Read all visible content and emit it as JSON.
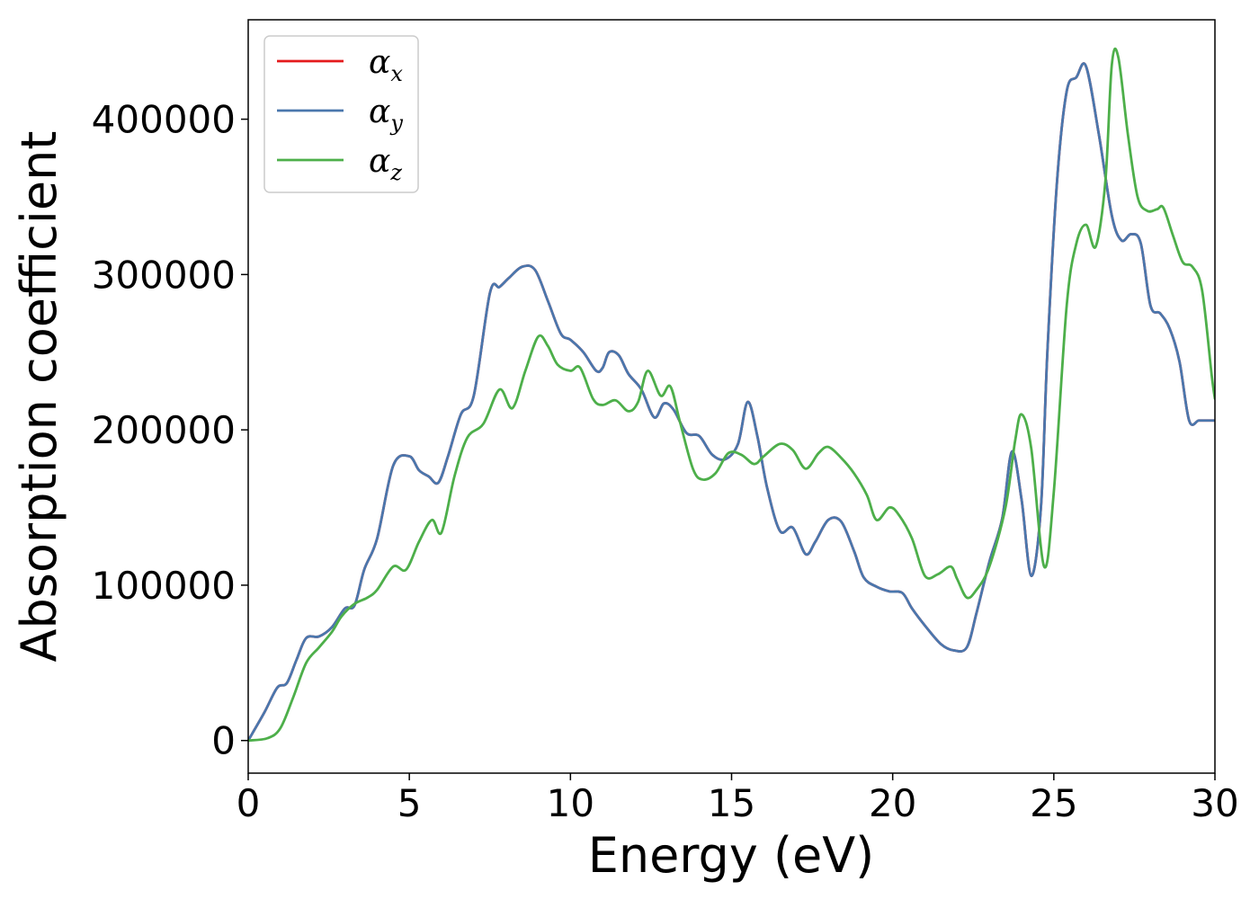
{
  "chart_data": {
    "type": "line",
    "xlabel": "Energy (eV)",
    "ylabel": "Absorption coefficient",
    "xlim": [
      0,
      30
    ],
    "ylim": [
      -21000,
      464000
    ],
    "xticks": [
      "0",
      "5",
      "10",
      "15",
      "20",
      "25",
      "30"
    ],
    "yticks": [
      "0",
      "100000",
      "200000",
      "300000",
      "400000"
    ],
    "grid": false,
    "legend_position": "top-left",
    "series": [
      {
        "name": "α_x",
        "symbol": "α",
        "subscript": "x",
        "color": "#e41a1c",
        "x": [
          0,
          0.5,
          0.9,
          1.2,
          1.5,
          1.8,
          2.2,
          2.6,
          3.0,
          3.3,
          3.6,
          4.0,
          4.5,
          5.0,
          5.3,
          5.6,
          5.9,
          6.2,
          6.6,
          7.0,
          7.5,
          7.8,
          8.1,
          8.5,
          8.9,
          9.3,
          9.7,
          10.0,
          10.4,
          10.8,
          11.0,
          11.2,
          11.5,
          11.8,
          12.2,
          12.6,
          12.9,
          13.2,
          13.6,
          14.0,
          14.4,
          14.8,
          15.2,
          15.5,
          15.8,
          16.1,
          16.5,
          16.9,
          17.3,
          17.6,
          18.0,
          18.4,
          18.8,
          19.1,
          19.5,
          19.9,
          20.3,
          20.6,
          21.0,
          21.5,
          21.9,
          22.3,
          22.6,
          23.0,
          23.4,
          23.7,
          24.0,
          24.3,
          24.6,
          24.8,
          25.1,
          25.4,
          25.7,
          26.0,
          26.4,
          26.8,
          27.1,
          27.4,
          27.7,
          28.0,
          28.3,
          28.6,
          28.9,
          29.2,
          29.5,
          29.8,
          30.0
        ],
        "values": [
          0,
          18000,
          34000,
          37000,
          52000,
          66000,
          67000,
          73000,
          85000,
          87000,
          110000,
          130000,
          177000,
          183000,
          174000,
          170000,
          166000,
          183000,
          210000,
          222000,
          288000,
          292000,
          298000,
          305000,
          303000,
          283000,
          262000,
          258000,
          250000,
          238000,
          240000,
          250000,
          248000,
          236000,
          226000,
          208000,
          217000,
          213000,
          198000,
          196000,
          184000,
          181000,
          191000,
          218000,
          196000,
          163000,
          135000,
          137000,
          120000,
          128000,
          142000,
          141000,
          122000,
          105000,
          99000,
          96000,
          95000,
          85000,
          74000,
          62000,
          58000,
          60000,
          82000,
          115000,
          143000,
          186000,
          155000,
          106000,
          150000,
          250000,
          360000,
          418000,
          427000,
          434000,
          390000,
          338000,
          322000,
          326000,
          320000,
          280000,
          275000,
          265000,
          244000,
          206000,
          206000,
          206000,
          206000
        ]
      },
      {
        "name": "α_y",
        "symbol": "α",
        "subscript": "y",
        "color": "#4a77ad",
        "x": [
          0,
          0.5,
          0.9,
          1.2,
          1.5,
          1.8,
          2.2,
          2.6,
          3.0,
          3.3,
          3.6,
          4.0,
          4.5,
          5.0,
          5.3,
          5.6,
          5.9,
          6.2,
          6.6,
          7.0,
          7.5,
          7.8,
          8.1,
          8.5,
          8.9,
          9.3,
          9.7,
          10.0,
          10.4,
          10.8,
          11.0,
          11.2,
          11.5,
          11.8,
          12.2,
          12.6,
          12.9,
          13.2,
          13.6,
          14.0,
          14.4,
          14.8,
          15.2,
          15.5,
          15.8,
          16.1,
          16.5,
          16.9,
          17.3,
          17.6,
          18.0,
          18.4,
          18.8,
          19.1,
          19.5,
          19.9,
          20.3,
          20.6,
          21.0,
          21.5,
          21.9,
          22.3,
          22.6,
          23.0,
          23.4,
          23.7,
          24.0,
          24.3,
          24.6,
          24.8,
          25.1,
          25.4,
          25.7,
          26.0,
          26.4,
          26.8,
          27.1,
          27.4,
          27.7,
          28.0,
          28.3,
          28.6,
          28.9,
          29.2,
          29.5,
          29.8,
          30.0
        ],
        "values": [
          0,
          18000,
          34000,
          37000,
          52000,
          66000,
          67000,
          73000,
          85000,
          87000,
          110000,
          130000,
          177000,
          183000,
          174000,
          170000,
          166000,
          183000,
          210000,
          222000,
          288000,
          292000,
          298000,
          305000,
          303000,
          283000,
          262000,
          258000,
          250000,
          238000,
          240000,
          250000,
          248000,
          236000,
          226000,
          208000,
          217000,
          213000,
          198000,
          196000,
          184000,
          181000,
          191000,
          218000,
          196000,
          163000,
          135000,
          137000,
          120000,
          128000,
          142000,
          141000,
          122000,
          105000,
          99000,
          96000,
          95000,
          85000,
          74000,
          62000,
          58000,
          60000,
          82000,
          115000,
          143000,
          186000,
          155000,
          106000,
          150000,
          250000,
          360000,
          418000,
          427000,
          434000,
          390000,
          338000,
          322000,
          326000,
          320000,
          280000,
          275000,
          265000,
          244000,
          206000,
          206000,
          206000,
          206000
        ]
      },
      {
        "name": "α_z",
        "symbol": "α",
        "subscript": "z",
        "color": "#4daf4a",
        "x": [
          0,
          0.6,
          1.0,
          1.4,
          1.8,
          2.2,
          2.6,
          2.9,
          3.3,
          3.7,
          4.0,
          4.5,
          4.9,
          5.3,
          5.7,
          6.0,
          6.4,
          6.8,
          7.3,
          7.8,
          8.2,
          8.6,
          9.0,
          9.3,
          9.6,
          10.0,
          10.3,
          10.7,
          11.0,
          11.4,
          11.8,
          12.1,
          12.4,
          12.8,
          13.1,
          13.4,
          13.8,
          14.1,
          14.5,
          14.9,
          15.3,
          15.7,
          16.0,
          16.5,
          16.9,
          17.3,
          17.7,
          18.0,
          18.4,
          18.8,
          19.2,
          19.5,
          19.9,
          20.2,
          20.6,
          21.0,
          21.4,
          21.8,
          22.0,
          22.3,
          22.6,
          23.0,
          23.5,
          23.8,
          24.0,
          24.3,
          24.7,
          25.0,
          25.4,
          25.7,
          26.0,
          26.3,
          26.6,
          26.8,
          27.0,
          27.3,
          27.6,
          27.9,
          28.2,
          28.4,
          28.7,
          29.0,
          29.3,
          29.6,
          29.9,
          30.0
        ],
        "values": [
          0,
          1500,
          8000,
          28000,
          50000,
          60000,
          70000,
          80000,
          88000,
          92000,
          97000,
          112000,
          110000,
          128000,
          142000,
          134000,
          170000,
          195000,
          204000,
          226000,
          214000,
          238000,
          260000,
          254000,
          242000,
          238000,
          240000,
          220000,
          216000,
          219000,
          212000,
          218000,
          238000,
          222000,
          228000,
          205000,
          175000,
          168000,
          172000,
          185000,
          184000,
          178000,
          183000,
          191000,
          187000,
          175000,
          185000,
          189000,
          182000,
          172000,
          158000,
          142000,
          150000,
          145000,
          130000,
          106000,
          107000,
          112000,
          104000,
          92000,
          97000,
          112000,
          150000,
          193000,
          210000,
          188000,
          112000,
          160000,
          280000,
          320000,
          332000,
          318000,
          360000,
          435000,
          440000,
          390000,
          350000,
          341000,
          342000,
          343000,
          325000,
          308000,
          305000,
          290000,
          235000,
          220000
        ]
      }
    ]
  }
}
